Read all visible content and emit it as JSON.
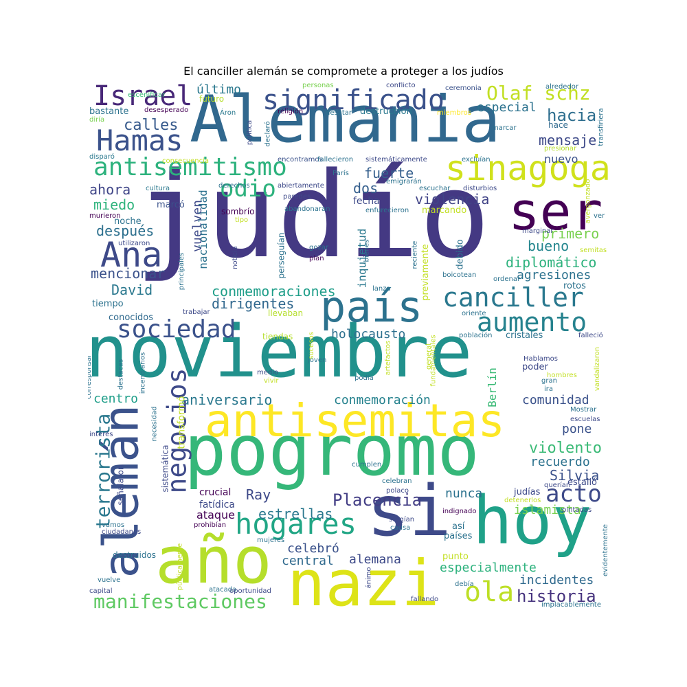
{
  "title": "El canciller alemán se compromete a proteger a los judíos",
  "words": {
    "judio": "judío",
    "noviembre": "noviembre",
    "alemania": "Alemania",
    "pogromo": "pogromo",
    "antisemitas": "antisemitas",
    "si": "si",
    "hoy": "hoy",
    "nazi": "nazi",
    "ano": "año",
    "aleman": "alemán",
    "ser": "ser",
    "pais": "país",
    "significado": "significado",
    "sinagoga": "sinagoga",
    "antisemitismo": "antisemitismo",
    "hamas": "Hamas",
    "israel": "Israel",
    "ana": "Ana",
    "canciller": "canciller",
    "aumento": "aumento",
    "sociedad": "sociedad",
    "hogares": "hogares",
    "negocios": "negocios",
    "terrorista": "terrorista",
    "olaf": "Olaf schz",
    "manifestaciones": "manifestaciones",
    "ola": "ola",
    "acto": "acto",
    "historia": "historia",
    "odio": "odio",
    "placencia": "Placencia",
    "hacia": "hacia",
    "mensaje": "mensaje",
    "especial": "especial",
    "calles": "calles",
    "ultimo": "último",
    "futuro": "futuro",
    "bastante": "bastante",
    "desesperado": "desesperado",
    "aron": "Áron",
    "religion": "religión",
    "desatar": "desatar",
    "destruccion": "destrucción",
    "miembros": "miembros",
    "hace": "hace",
    "marcar": "marcar",
    "presionar": "presionar",
    "transfiriera": "transfiriera",
    "alrededor": "alrededor",
    "ceremonia": "ceremonia",
    "conflicto": "conflicto",
    "personas": "personas",
    "escenificar": "escenificar",
    "diria": "diría",
    "politica": "política",
    "declaro": "declaró",
    "disparo": "disparó",
    "consecuencia": "consecuencia",
    "encontramos": "encontramos",
    "fallecieron": "fallecieron",
    "sistematicamente": "sistemáticamente",
    "excluian": "excluían",
    "nuevo": "nuevo",
    "avergonzado": "avergonzado",
    "cultura": "cultura",
    "derechos": "derechos",
    "abiertamente": "abiertamente",
    "paris": "París",
    "emigraran": "emigrarán",
    "escuchar": "escuchar",
    "disturbios": "disturbios",
    "fuerte": "fuerte",
    "dos": "dos",
    "ahora": "ahora",
    "miedo": "miedo",
    "marco": "marcó",
    "paredes": "paredes",
    "abandonaran": "abandonaran",
    "enfurecieron": "enfurecieron",
    "violencia": "violencia",
    "fecha": "fecha",
    "marcando": "marcando",
    "murieron": "murieron",
    "sombrio": "sombrío",
    "tipo": "tipo",
    "noche": "noche",
    "vuelven": "vuelven",
    "nacionalidad": "nacionalidad",
    "despues": "después",
    "primero": "primero",
    "ver": "ver",
    "bueno": "bueno",
    "marginar": "marginar",
    "semitas": "semitas",
    "utilizaron": "utilizaron",
    "noticia": "noticia",
    "persiguian": "perseguían",
    "gozar": "gozar",
    "plan": "plan",
    "bienes": "bienes",
    "reciente": "reciente",
    "previamente": "previamente",
    "debido": "debido",
    "inquietud": "inquietud",
    "diplomatico": "diplomático",
    "agresiones": "agresiones",
    "mencionar": "mencionar",
    "principales": "principales",
    "lanza": "lanza",
    "boicotean": "boicotean",
    "ordenar": "ordenar",
    "rotos": "rotos",
    "david": "David",
    "conmemoraciones": "conmemoraciones",
    "dirigentes": "dirigentes",
    "tiempo": "tiempo",
    "conocidos": "conocidos",
    "trabajar": "trabajar",
    "llevaban": "llevaban",
    "oriente": "oriente",
    "holocausto": "holocausto",
    "poblacion": "población",
    "fallecio": "falleció",
    "cristales": "cristales",
    "tiendas": "tiendas",
    "sucesos": "sucesos",
    "corresponsal": "corresponsal",
    "destacas": "destacas",
    "incendiarios": "incendiarios",
    "joven": "joven",
    "medio": "medio",
    "vivir": "vivir",
    "podia": "podía",
    "artefactos": "artefactos",
    "general": "general",
    "fundamentales": "fundamentales",
    "berlin": "Berlín",
    "hablamos": "Hablamos",
    "poder": "poder",
    "hombres": "hombres",
    "gran": "gran",
    "ira": "ira",
    "vandalizaron": "vandalizaron",
    "centro": "centro",
    "aniversario": "aniversario",
    "conmemoracion": "conmemoración",
    "comunidad": "comunidad",
    "mostrar": "Mostrar",
    "escuelas": "escuelas",
    "pone": "pone",
    "interes": "interés",
    "necesidad": "necesidad",
    "transformo": "transformó",
    "violento": "violento",
    "recuerdo": "recuerdo",
    "silvia": "Silvia",
    "sistematica": "sistemática",
    "cumplen": "cumplen",
    "celebran": "celebran",
    "polaco": "polaco",
    "querian": "querían",
    "estallo": "estalló",
    "senalaron": "señalaron",
    "crucial": "crucial",
    "ray": "Ray",
    "nunca": "nunca",
    "judias": "judías",
    "detenerlos": "detenerlos",
    "fatidica": "fatídica",
    "ataque": "ataque",
    "estrellas": "estrellas",
    "islamista": "islamista",
    "pintadas": "pintadas",
    "indignado": "indignado",
    "vamos": "vamos",
    "ciudadanos": "ciudadanos",
    "prohibian": "prohibían",
    "mujeres": "mujeres",
    "surgian": "surgían",
    "causa": "causa",
    "asi": "así",
    "paises": "países",
    "celebro": "celebró",
    "central": "central",
    "alemana": "alemana",
    "destruidos": "destruidos",
    "publicamente": "públicamente",
    "punto": "punto",
    "especialmente": "especialmente",
    "evidentemente": "evidentemente",
    "vuelve": "vuelve",
    "incidentes": "incidentes",
    "capital": "capital",
    "atacada": "atacada",
    "oportunidad": "oportunidad",
    "animo": "ánimo",
    "debia": "debía",
    "fallando": "fallando",
    "implacablemente": "implacablemente"
  }
}
